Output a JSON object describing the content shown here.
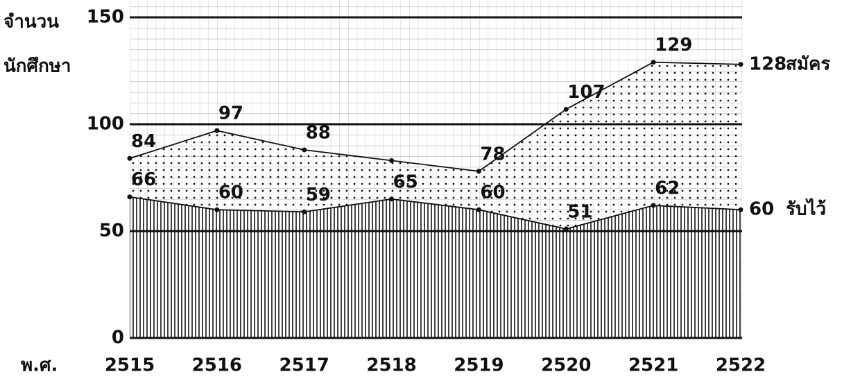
{
  "chart_data": {
    "type": "area",
    "ylabel": [
      "จำนวน",
      "นักศึกษา"
    ],
    "xlabel": "พ.ศ.",
    "categories": [
      "2515",
      "2516",
      "2517",
      "2518",
      "2519",
      "2520",
      "2521",
      "2522"
    ],
    "series": [
      {
        "name": "สมัคร",
        "color": "#111111",
        "pattern": "dots",
        "values": [
          84,
          97,
          88,
          83,
          78,
          107,
          129,
          128
        ],
        "value_labels": [
          "84",
          "97",
          "88",
          null,
          "78",
          "107",
          "129",
          "128"
        ]
      },
      {
        "name": "รับไว้",
        "color": "#111111",
        "pattern": "vertical-lines",
        "values": [
          66,
          60,
          59,
          65,
          60,
          51,
          62,
          60
        ]
      }
    ],
    "ylim": [
      0,
      150
    ],
    "yticks": [
      0,
      50,
      100,
      150
    ],
    "grid": true
  }
}
